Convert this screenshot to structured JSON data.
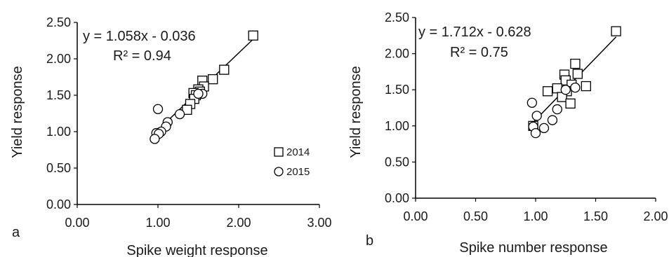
{
  "chart_data": [
    {
      "type": "scatter",
      "panel_label": "a",
      "xlabel": "Spike weight response",
      "ylabel": "Yield response",
      "xlim": [
        0,
        3
      ],
      "ylim": [
        0,
        2.5
      ],
      "x_ticks": [
        "0.00",
        "1.00",
        "2.00",
        "3.00"
      ],
      "y_ticks": [
        "0.00",
        "0.50",
        "1.00",
        "1.50",
        "2.00",
        "2.50"
      ],
      "grid": false,
      "legend_position": "bottom-right",
      "equation": "y = 1.058x - 0.036",
      "r2": "R² = 0.94",
      "trendline": {
        "slope": 1.058,
        "intercept": -0.036,
        "x_range": [
          0.95,
          2.18
        ]
      },
      "series": [
        {
          "name": "2014",
          "marker": "square",
          "points": [
            [
              2.18,
              2.32
            ],
            [
              1.82,
              1.85
            ],
            [
              1.68,
              1.72
            ],
            [
              1.55,
              1.7
            ],
            [
              1.57,
              1.62
            ],
            [
              1.5,
              1.58
            ],
            [
              1.52,
              1.55
            ],
            [
              1.44,
              1.53
            ],
            [
              1.47,
              1.5
            ],
            [
              1.45,
              1.45
            ],
            [
              1.4,
              1.38
            ],
            [
              1.36,
              1.3
            ]
          ]
        },
        {
          "name": "2015",
          "marker": "circle",
          "points": [
            [
              1.0,
              1.31
            ],
            [
              1.27,
              1.24
            ],
            [
              1.12,
              1.13
            ],
            [
              1.1,
              1.07
            ],
            [
              1.04,
              1.0
            ],
            [
              0.98,
              0.98
            ],
            [
              1.01,
              0.97
            ],
            [
              0.96,
              0.9
            ],
            [
              1.55,
              1.52
            ],
            [
              1.5,
              1.52
            ]
          ]
        }
      ]
    },
    {
      "type": "scatter",
      "panel_label": "b",
      "xlabel": "Spike number response",
      "ylabel": "Yield response",
      "xlim": [
        0,
        2
      ],
      "ylim": [
        0,
        2.5
      ],
      "x_ticks": [
        "0.00",
        "0.50",
        "1.00",
        "1.50",
        "2.00"
      ],
      "y_ticks": [
        "0.00",
        "0.50",
        "1.00",
        "1.50",
        "2.00",
        "2.50"
      ],
      "grid": false,
      "equation": "y = 1.712x - 0.628",
      "r2": "R² = 0.75",
      "trendline": {
        "slope": 1.712,
        "intercept": -0.628,
        "x_range": [
          0.97,
          1.67
        ]
      },
      "series": [
        {
          "name": "2014",
          "marker": "square",
          "points": [
            [
              1.67,
              2.31
            ],
            [
              1.33,
              1.86
            ],
            [
              1.35,
              1.72
            ],
            [
              1.24,
              1.71
            ],
            [
              1.25,
              1.63
            ],
            [
              1.3,
              1.57
            ],
            [
              1.42,
              1.55
            ],
            [
              1.18,
              1.52
            ],
            [
              1.1,
              1.48
            ],
            [
              1.26,
              1.48
            ],
            [
              1.22,
              1.4
            ],
            [
              1.29,
              1.31
            ],
            [
              0.98,
              1.0
            ]
          ]
        },
        {
          "name": "2015",
          "marker": "circle",
          "points": [
            [
              0.97,
              1.32
            ],
            [
              1.33,
              1.53
            ],
            [
              1.18,
              1.23
            ],
            [
              1.01,
              1.14
            ],
            [
              1.14,
              1.08
            ],
            [
              0.98,
              0.99
            ],
            [
              1.07,
              0.97
            ],
            [
              1.0,
              0.9
            ],
            [
              1.25,
              1.5
            ]
          ]
        }
      ]
    }
  ]
}
